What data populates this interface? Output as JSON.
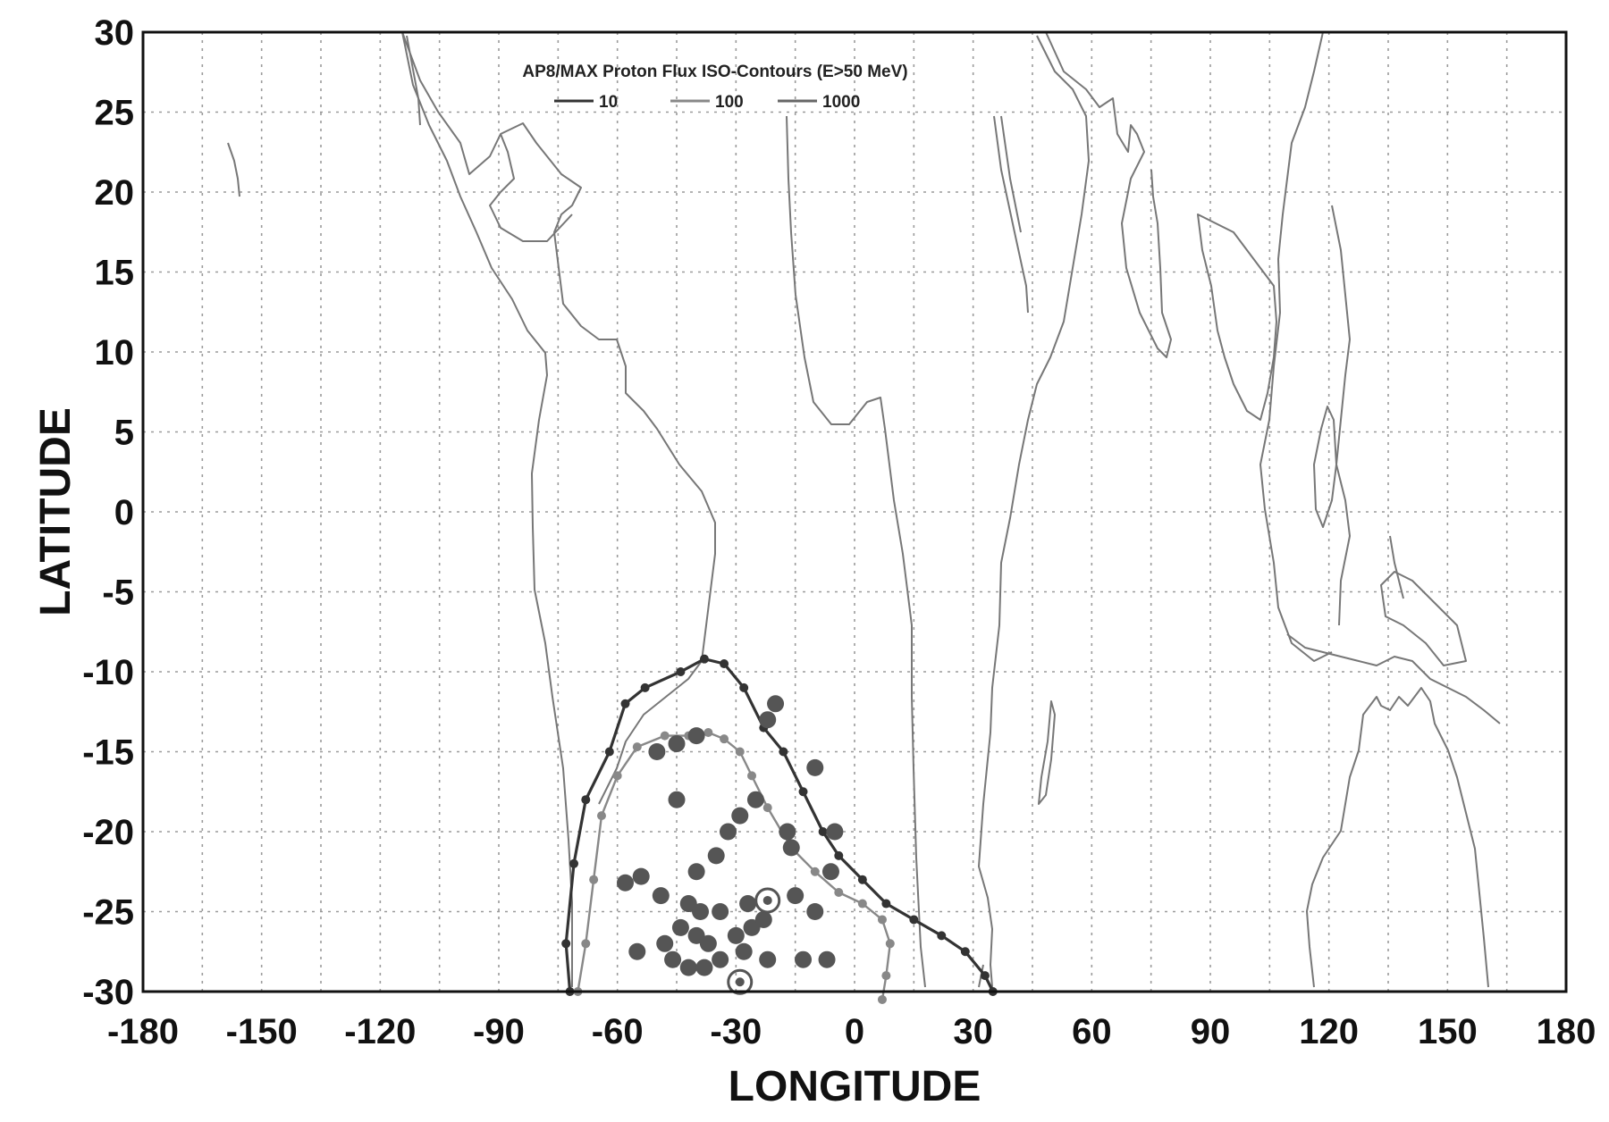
{
  "chart_data": {
    "type": "line",
    "title": "AP8/MAX Proton Flux ISO-Contours (E>50 MeV)",
    "xlabel": "LONGITUDE",
    "ylabel": "LATITUDE",
    "xlim": [
      -180,
      180
    ],
    "ylim": [
      -30,
      30
    ],
    "x_ticks": [
      -180,
      -150,
      -120,
      -90,
      -60,
      -30,
      0,
      30,
      60,
      90,
      120,
      150,
      180
    ],
    "y_ticks": [
      -30,
      -25,
      -20,
      -15,
      -10,
      -5,
      0,
      5,
      10,
      15,
      20,
      25,
      30
    ],
    "grid": true,
    "legend_position": "top-center",
    "colors": {
      "flux10": "#333333",
      "flux100": "#888888",
      "flux1000": "#666666",
      "coast": "#777777",
      "points": "#555555"
    },
    "series": [
      {
        "name": "10",
        "points": [
          [
            -72,
            -30
          ],
          [
            -73,
            -27
          ],
          [
            -71,
            -22
          ],
          [
            -68,
            -18
          ],
          [
            -62,
            -15
          ],
          [
            -58,
            -12
          ],
          [
            -53,
            -11
          ],
          [
            -44,
            -10
          ],
          [
            -38,
            -9.2
          ],
          [
            -33,
            -9.5
          ],
          [
            -28,
            -11
          ],
          [
            -23,
            -13.5
          ],
          [
            -18,
            -15
          ],
          [
            -13,
            -17.5
          ],
          [
            -8,
            -20
          ],
          [
            -4,
            -21.5
          ],
          [
            2,
            -23
          ],
          [
            8,
            -24.5
          ],
          [
            15,
            -25.5
          ],
          [
            22,
            -26.5
          ],
          [
            28,
            -27.5
          ],
          [
            33,
            -29
          ],
          [
            35,
            -30
          ]
        ]
      },
      {
        "name": "100",
        "points": [
          [
            -70,
            -30
          ],
          [
            -68,
            -27
          ],
          [
            -66,
            -23
          ],
          [
            -64,
            -19
          ],
          [
            -60,
            -16.5
          ],
          [
            -55,
            -14.7
          ],
          [
            -48,
            -14
          ],
          [
            -42,
            -14
          ],
          [
            -37,
            -13.8
          ],
          [
            -33,
            -14.2
          ],
          [
            -29,
            -15
          ],
          [
            -26,
            -16.5
          ],
          [
            -22,
            -18.5
          ],
          [
            -16,
            -21
          ],
          [
            -10,
            -22.5
          ],
          [
            -4,
            -23.8
          ],
          [
            2,
            -24.5
          ],
          [
            7,
            -25.5
          ],
          [
            9,
            -27
          ],
          [
            8,
            -29
          ],
          [
            7,
            -30.5
          ]
        ]
      },
      {
        "name": "1000",
        "points": []
      }
    ],
    "observation_points": [
      [
        -40,
        -14
      ],
      [
        -45,
        -14.5
      ],
      [
        -50,
        -15
      ],
      [
        -20,
        -12
      ],
      [
        -22,
        -13
      ],
      [
        -45,
        -18
      ],
      [
        -32,
        -20
      ],
      [
        -35,
        -21.5
      ],
      [
        -40,
        -22.5
      ],
      [
        -54,
        -22.8
      ],
      [
        -58,
        -23.2
      ],
      [
        -49,
        -24
      ],
      [
        -42,
        -24.5
      ],
      [
        -39,
        -25
      ],
      [
        -34,
        -25
      ],
      [
        -27,
        -24.5
      ],
      [
        -15,
        -24
      ],
      [
        -10,
        -25
      ],
      [
        -44,
        -26
      ],
      [
        -40,
        -26.5
      ],
      [
        -48,
        -27
      ],
      [
        -37,
        -27
      ],
      [
        -30,
        -26.5
      ],
      [
        -26,
        -26
      ],
      [
        -23,
        -25.5
      ],
      [
        -55,
        -27.5
      ],
      [
        -46,
        -28
      ],
      [
        -42,
        -28.5
      ],
      [
        -38,
        -28.5
      ],
      [
        -34,
        -28
      ],
      [
        -28,
        -27.5
      ],
      [
        -22,
        -28
      ],
      [
        -13,
        -28
      ],
      [
        -7,
        -28
      ],
      [
        -17,
        -20
      ],
      [
        -16,
        -21
      ],
      [
        -10,
        -16
      ],
      [
        -5,
        -20
      ],
      [
        -25,
        -18
      ],
      [
        -29,
        -19
      ],
      [
        -6,
        -22.5
      ]
    ],
    "marked_points": [
      [
        -22,
        -24.3
      ],
      [
        -29,
        -29.4
      ]
    ]
  },
  "legend": {
    "title": "AP8/MAX Proton Flux ISO-Contours (E>50 MeV)",
    "items": [
      {
        "label": "10",
        "color": "#333333"
      },
      {
        "label": "100",
        "color": "#888888"
      },
      {
        "label": "1000",
        "color": "#666666"
      }
    ]
  }
}
